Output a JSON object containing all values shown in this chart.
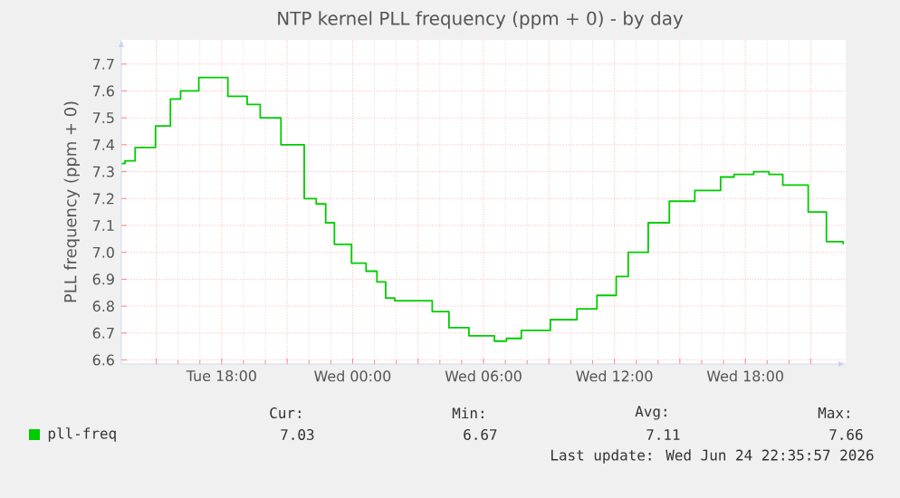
{
  "chart_data": {
    "type": "step",
    "title": "NTP kernel PLL frequency (ppm + 0) - by day",
    "ylabel": "PLL frequency (ppm + 0)",
    "x": [
      "2026-06-23T13:25",
      "2026-06-23T13:34",
      "2026-06-23T14:02",
      "2026-06-23T14:58",
      "2026-06-23T15:39",
      "2026-06-23T16:07",
      "2026-06-23T16:57",
      "2026-06-23T18:17",
      "2026-06-23T19:10",
      "2026-06-23T19:46",
      "2026-06-23T20:43",
      "2026-06-23T21:47",
      "2026-06-23T22:20",
      "2026-06-23T22:46",
      "2026-06-23T23:10",
      "2026-06-23T23:57",
      "2026-06-24T00:37",
      "2026-06-24T01:07",
      "2026-06-24T01:31",
      "2026-06-24T01:56",
      "2026-06-24T03:39",
      "2026-06-24T04:25",
      "2026-06-24T05:20",
      "2026-06-24T06:30",
      "2026-06-24T07:03",
      "2026-06-24T07:44",
      "2026-06-24T09:04",
      "2026-06-24T10:17",
      "2026-06-24T11:12",
      "2026-06-24T12:05",
      "2026-06-24T12:38",
      "2026-06-24T13:33",
      "2026-06-24T14:31",
      "2026-06-24T15:41",
      "2026-06-24T16:52",
      "2026-06-24T17:29",
      "2026-06-24T18:23",
      "2026-06-24T19:05",
      "2026-06-24T19:43",
      "2026-06-24T20:53",
      "2026-06-24T21:43",
      "2026-06-24T22:29"
    ],
    "series": [
      {
        "name": "pll-freq",
        "color": "#00cc00",
        "values": [
          7.33,
          7.34,
          7.39,
          7.47,
          7.57,
          7.6,
          7.65,
          7.58,
          7.55,
          7.5,
          7.4,
          7.2,
          7.18,
          7.11,
          7.03,
          6.96,
          6.93,
          6.89,
          6.83,
          6.82,
          6.78,
          6.72,
          6.69,
          6.67,
          6.68,
          6.71,
          6.75,
          6.79,
          6.84,
          6.91,
          7.0,
          7.11,
          7.19,
          7.23,
          7.28,
          7.29,
          7.3,
          7.29,
          7.25,
          7.15,
          7.04,
          7.03
        ]
      }
    ],
    "xlim": [
      "2026-06-23T13:24",
      "2026-06-24T22:36"
    ],
    "ylim": [
      6.585,
      7.79
    ],
    "xticks": [
      {
        "value": "2026-06-23T15:00",
        "label": null
      },
      {
        "value": "2026-06-23T18:00",
        "label": "Tue 18:00"
      },
      {
        "value": "2026-06-23T21:00",
        "label": null
      },
      {
        "value": "2026-06-24T00:00",
        "label": "Wed 00:00"
      },
      {
        "value": "2026-06-24T03:00",
        "label": null
      },
      {
        "value": "2026-06-24T06:00",
        "label": "Wed 06:00"
      },
      {
        "value": "2026-06-24T09:00",
        "label": null
      },
      {
        "value": "2026-06-24T12:00",
        "label": "Wed 12:00"
      },
      {
        "value": "2026-06-24T15:00",
        "label": null
      },
      {
        "value": "2026-06-24T18:00",
        "label": "Wed 18:00"
      },
      {
        "value": "2026-06-24T21:00",
        "label": null
      }
    ],
    "yticks": [
      6.6,
      6.7,
      6.8,
      6.9,
      {
        "value": 7.0,
        "label": "7.0"
      },
      7.1,
      7.2,
      7.3,
      7.4,
      7.5,
      7.6,
      7.7
    ],
    "grid": true,
    "legend": "bottom left",
    "annotations": [
      "Cur:",
      "7.03",
      "Min:",
      "6.67",
      "Avg:",
      "7.11",
      "Max:",
      "7.66",
      "Last update: Wed Jun 24 22:35:57 2026"
    ]
  }
}
